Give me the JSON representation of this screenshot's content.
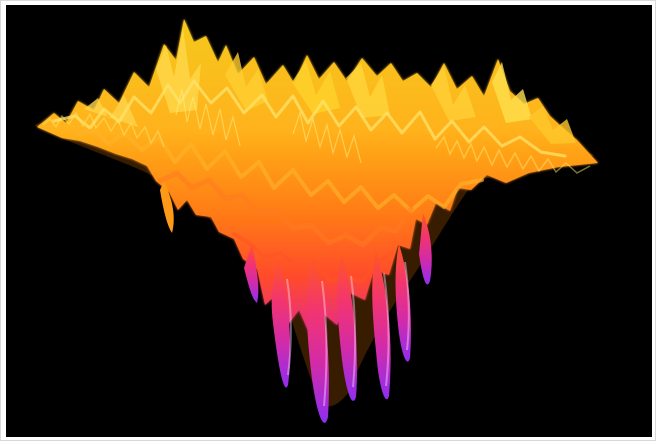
{
  "image": {
    "subject": "3d-surface-render",
    "background_color": "#000000",
    "frame_color": "#ffffff",
    "palette": {
      "top_yellow": "#f2c21d",
      "mid_orange": "#ff8a16",
      "deep_orange": "#ff5b22",
      "magenta": "#e42a8f",
      "purple": "#9b2be6",
      "highlight": "#fff37a",
      "shadow": "#9b5a00"
    }
  }
}
